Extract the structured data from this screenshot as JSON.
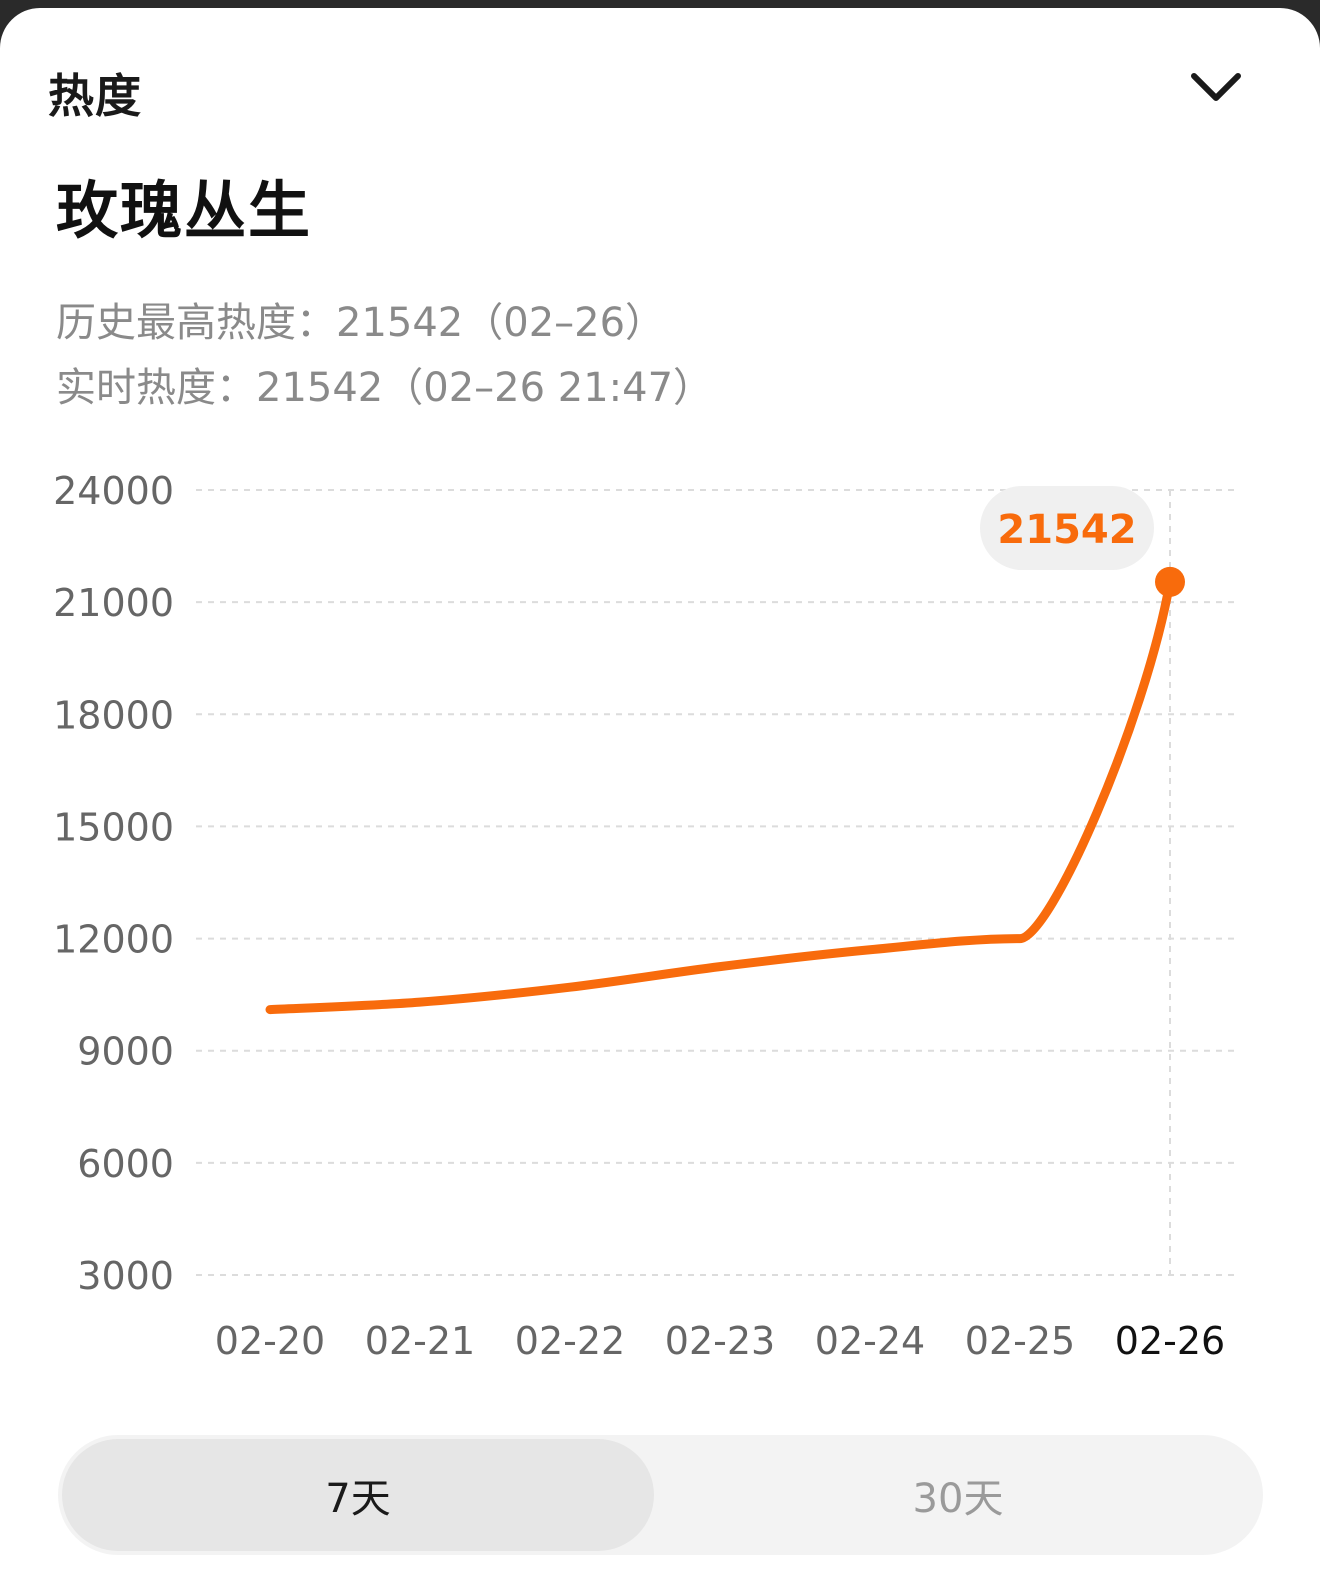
{
  "header": {
    "panel_title": "热度"
  },
  "topic": {
    "title": "玫瑰丛生",
    "history_peak": "历史最高热度：21542（02–26）",
    "realtime": "实时热度：21542（02–26 21:47）"
  },
  "chart_data": {
    "type": "line",
    "categories": [
      "02-20",
      "02-21",
      "02-22",
      "02-23",
      "02-24",
      "02-25",
      "02-26"
    ],
    "values": [
      10100,
      10300,
      10700,
      11250,
      11700,
      12000,
      21542
    ],
    "ylim": [
      3000,
      24000
    ],
    "y_ticks": [
      24000,
      21000,
      18000,
      15000,
      12000,
      9000,
      6000,
      3000
    ],
    "highlight_label": "21542",
    "highlight_index": 6,
    "line_color": "#f86b0c",
    "grid": true
  },
  "tabs": [
    {
      "label": "7天",
      "selected": true
    },
    {
      "label": "30天",
      "selected": false
    }
  ]
}
